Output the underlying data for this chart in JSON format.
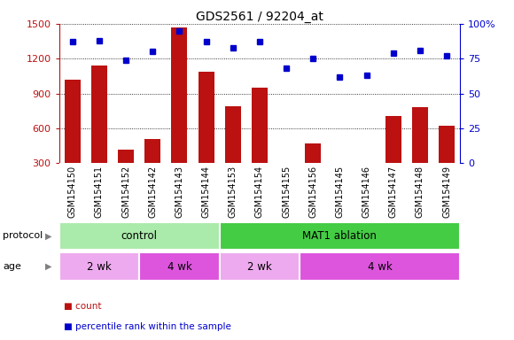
{
  "title": "GDS2561 / 92204_at",
  "samples": [
    "GSM154150",
    "GSM154151",
    "GSM154152",
    "GSM154142",
    "GSM154143",
    "GSM154144",
    "GSM154153",
    "GSM154154",
    "GSM154155",
    "GSM154156",
    "GSM154145",
    "GSM154146",
    "GSM154147",
    "GSM154148",
    "GSM154149"
  ],
  "counts": [
    1020,
    1140,
    415,
    510,
    1470,
    1090,
    790,
    950,
    305,
    470,
    270,
    285,
    710,
    780,
    620
  ],
  "percentiles": [
    87,
    88,
    74,
    80,
    95,
    87,
    83,
    87,
    68,
    75,
    62,
    63,
    79,
    81,
    77
  ],
  "bar_color": "#bb1111",
  "dot_color": "#0000cc",
  "ylim_left": [
    300,
    1500
  ],
  "ylim_right": [
    0,
    100
  ],
  "yticks_left": [
    300,
    600,
    900,
    1200,
    1500
  ],
  "yticks_right": [
    0,
    25,
    50,
    75,
    100
  ],
  "protocol_groups": [
    {
      "label": "control",
      "start": 0,
      "end": 6,
      "color": "#aaeaaa"
    },
    {
      "label": "MAT1 ablation",
      "start": 6,
      "end": 15,
      "color": "#44cc44"
    }
  ],
  "age_groups": [
    {
      "label": "2 wk",
      "start": 0,
      "end": 3,
      "color": "#eeaaee"
    },
    {
      "label": "4 wk",
      "start": 3,
      "end": 6,
      "color": "#dd55dd"
    },
    {
      "label": "2 wk",
      "start": 6,
      "end": 9,
      "color": "#eeaaee"
    },
    {
      "label": "4 wk",
      "start": 9,
      "end": 15,
      "color": "#dd55dd"
    }
  ],
  "protocol_label": "protocol",
  "age_label": "age",
  "legend_count_label": "count",
  "legend_pct_label": "percentile rank within the sample",
  "xticklabel_bg": "#d8d8d8",
  "tick_label_fontsize": 7,
  "title_fontsize": 10
}
